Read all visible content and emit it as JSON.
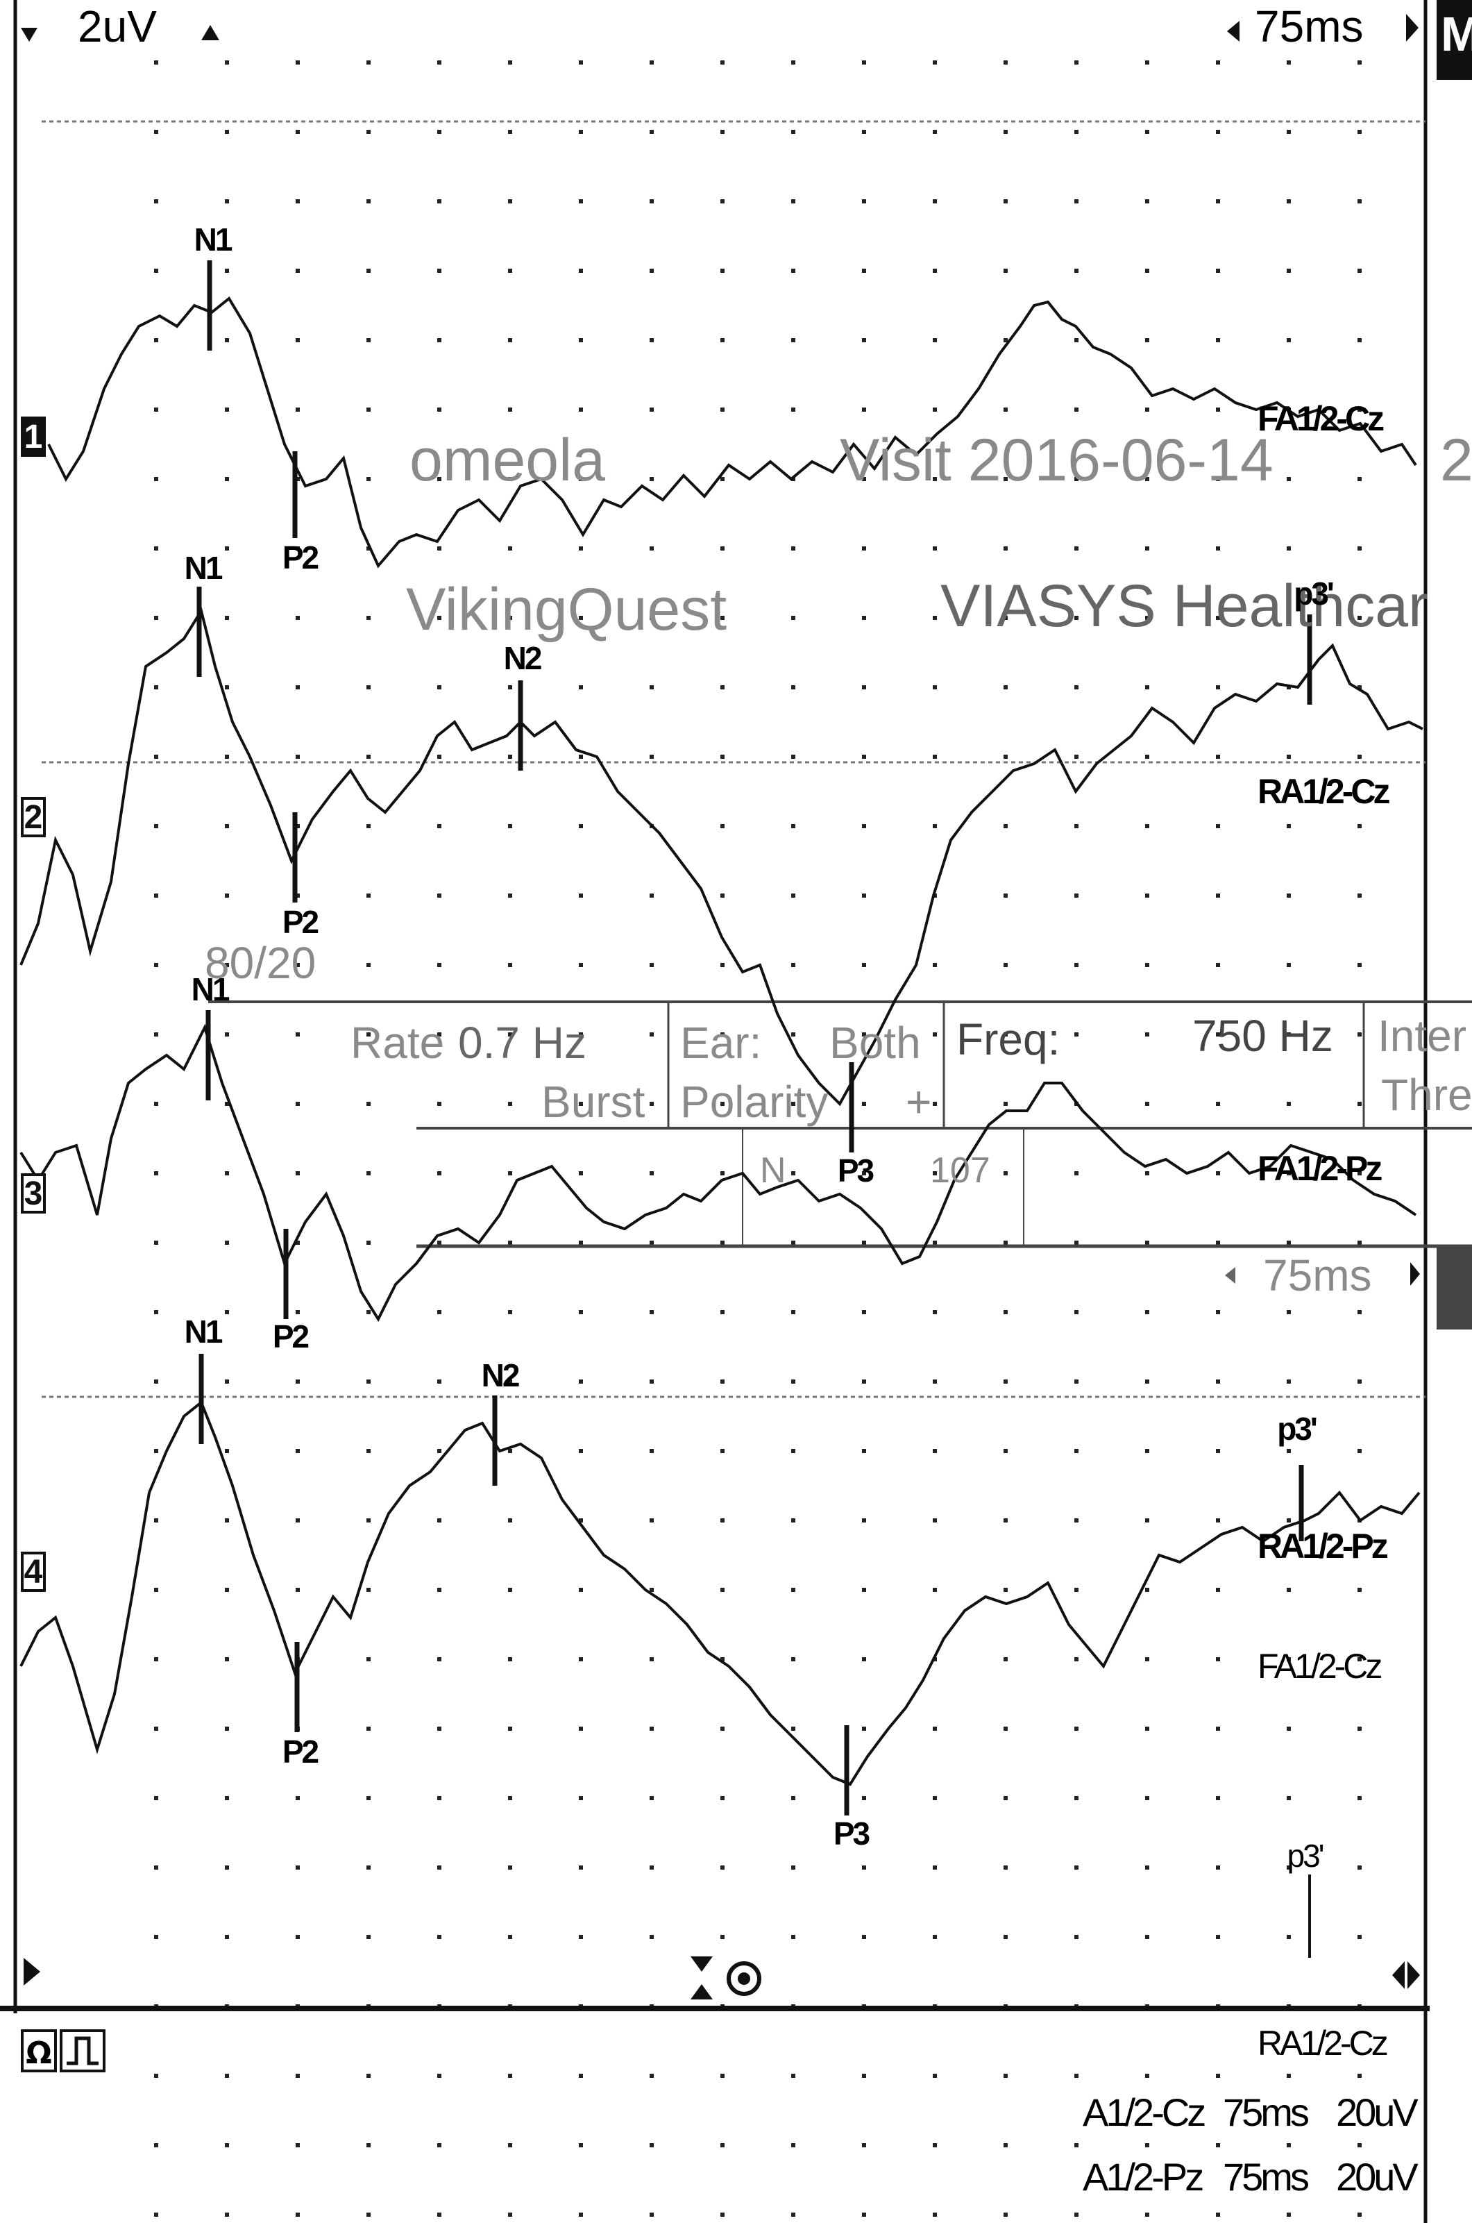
{
  "header": {
    "gain": "2uV",
    "timebase": "75ms",
    "right_edge_letter": "M"
  },
  "background_overlay": {
    "visit_text_partial": "Visit 2016-06-14",
    "name_fragment": "omeola",
    "product_fragment": "VikingQuest",
    "company_fragment": "VIASYS Healthcar",
    "right_edge_char": "2",
    "rate_label": "Rate",
    "rate_value": "0.7 Hz",
    "burst_label": "Burst",
    "ear_label": "Ear:",
    "ear_value": "Both",
    "polarity_label": "Polarity",
    "polarity_value": "+",
    "freq_label": "Freq:",
    "freq_value": "750 Hz",
    "intensity_fragment": "Inter",
    "threshold_fragment": "Thre",
    "ratio_fragment": "80/20",
    "n_fragment": "N",
    "n_value_fragment": "107",
    "timebase_second": "75ms"
  },
  "channels": [
    {
      "number": "1",
      "style": "dark",
      "derivation": "FA1/2-Cz",
      "peaks": [
        "N1",
        "P2"
      ]
    },
    {
      "number": "2",
      "style": "box",
      "derivation": "RA1/2-Cz",
      "peaks": [
        "N1",
        "P2",
        "N2",
        "p3'"
      ]
    },
    {
      "number": "3",
      "style": "box",
      "derivation": "FA1/2-Pz",
      "peaks": [
        "N1",
        "P2",
        "P3"
      ]
    },
    {
      "number": "4",
      "style": "box",
      "derivation": "RA1/2-Pz",
      "peaks": [
        "N1",
        "P2",
        "N2",
        "P3",
        "p3'"
      ]
    }
  ],
  "extra_labels": {
    "fa_cz_lower": "FA1/2-Cz",
    "p3_prime_lower": "p3'"
  },
  "bottom_panel": {
    "derivation": "RA1/2-Cz",
    "rows": [
      {
        "montage": "A1/2-Cz",
        "time": "75ms",
        "sens": "20uV"
      },
      {
        "montage": "A1/2-Pz",
        "time": "75ms",
        "sens": "20uV"
      }
    ]
  },
  "icons": [
    "triangle-down-icon",
    "triangle-up-icon",
    "arrow-left-icon",
    "arrow-right-icon",
    "hourglass-icon",
    "eye-icon",
    "ohm-icon",
    "pulse-icon",
    "play-marker-icon",
    "split-arrow-icon"
  ]
}
